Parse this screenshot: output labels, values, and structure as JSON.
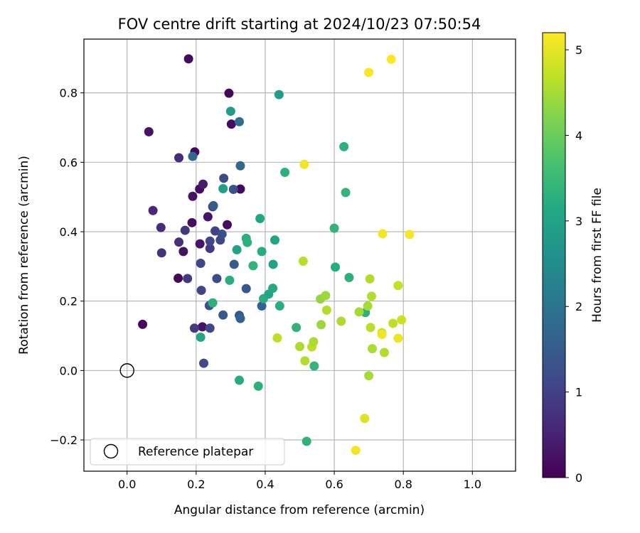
{
  "chart_data": {
    "type": "scatter",
    "title": "FOV centre drift starting at 2024/10/23 07:50:54",
    "xlabel": "Angular distance from reference (arcmin)",
    "ylabel": "Rotation from reference (arcmin)",
    "xlim": [
      -0.125,
      1.125
    ],
    "ylim": [
      -0.29,
      0.955
    ],
    "x_ticks": [
      0.0,
      0.2,
      0.4,
      0.6,
      0.8,
      1.0
    ],
    "x_tick_labels": [
      "0.0",
      "0.2",
      "0.4",
      "0.6",
      "0.8",
      "1.0"
    ],
    "y_ticks": [
      -0.2,
      0.0,
      0.2,
      0.4,
      0.6,
      0.8
    ],
    "y_tick_labels": [
      "−0.2",
      "0.0",
      "0.2",
      "0.4",
      "0.6",
      "0.8"
    ],
    "grid": true,
    "colormap": "viridis",
    "colorbar": {
      "label": "Hours from first FF file",
      "range": [
        0,
        5.2
      ],
      "ticks": [
        0,
        1,
        2,
        3,
        4,
        5
      ],
      "tick_labels": [
        "0",
        "1",
        "2",
        "3",
        "4",
        "5"
      ]
    },
    "reference_point": {
      "x": 0.0,
      "y": 0.0,
      "marker": "hollow-circle"
    },
    "legend": {
      "placement": "lower-left",
      "entries": [
        "Reference platepar"
      ]
    },
    "points": [
      {
        "x": 0.045,
        "y": 0.133,
        "c": 0.1
      },
      {
        "x": 0.063,
        "y": 0.688,
        "c": 0.25
      },
      {
        "x": 0.148,
        "y": 0.266,
        "c": 0.1
      },
      {
        "x": 0.163,
        "y": 0.343,
        "c": 0.25
      },
      {
        "x": 0.178,
        "y": 0.898,
        "c": 0.15
      },
      {
        "x": 0.188,
        "y": 0.426,
        "c": 0.2
      },
      {
        "x": 0.19,
        "y": 0.502,
        "c": 0.25
      },
      {
        "x": 0.196,
        "y": 0.63,
        "c": 0.1
      },
      {
        "x": 0.21,
        "y": 0.523,
        "c": 0.15
      },
      {
        "x": 0.211,
        "y": 0.365,
        "c": 0.3
      },
      {
        "x": 0.22,
        "y": 0.537,
        "c": 0.4
      },
      {
        "x": 0.218,
        "y": 0.126,
        "c": 0.25
      },
      {
        "x": 0.234,
        "y": 0.443,
        "c": 0.3
      },
      {
        "x": 0.29,
        "y": 0.42,
        "c": 0.2
      },
      {
        "x": 0.295,
        "y": 0.799,
        "c": 0.1
      },
      {
        "x": 0.302,
        "y": 0.71,
        "c": 0.15
      },
      {
        "x": 0.328,
        "y": 0.523,
        "c": 0.1
      },
      {
        "x": 0.075,
        "y": 0.461,
        "c": 0.6
      },
      {
        "x": 0.098,
        "y": 0.412,
        "c": 0.65
      },
      {
        "x": 0.15,
        "y": 0.613,
        "c": 0.65
      },
      {
        "x": 0.15,
        "y": 0.37,
        "c": 0.7
      },
      {
        "x": 0.1,
        "y": 0.339,
        "c": 0.75
      },
      {
        "x": 0.175,
        "y": 0.265,
        "c": 0.85
      },
      {
        "x": 0.168,
        "y": 0.404,
        "c": 0.8
      },
      {
        "x": 0.195,
        "y": 0.122,
        "c": 0.9
      },
      {
        "x": 0.213,
        "y": 0.309,
        "c": 1.1
      },
      {
        "x": 0.215,
        "y": 0.231,
        "c": 1.05
      },
      {
        "x": 0.222,
        "y": 0.021,
        "c": 1.2
      },
      {
        "x": 0.24,
        "y": 0.122,
        "c": 1.1
      },
      {
        "x": 0.24,
        "y": 0.352,
        "c": 0.85
      },
      {
        "x": 0.24,
        "y": 0.373,
        "c": 1.1
      },
      {
        "x": 0.238,
        "y": 0.187,
        "c": 1.3
      },
      {
        "x": 0.248,
        "y": 0.472,
        "c": 0.9
      },
      {
        "x": 0.255,
        "y": 0.402,
        "c": 1.0
      },
      {
        "x": 0.26,
        "y": 0.265,
        "c": 1.2
      },
      {
        "x": 0.27,
        "y": 0.376,
        "c": 1.1
      },
      {
        "x": 0.275,
        "y": 0.393,
        "c": 1.25
      },
      {
        "x": 0.278,
        "y": 0.16,
        "c": 1.4
      },
      {
        "x": 0.28,
        "y": 0.554,
        "c": 1.2
      },
      {
        "x": 0.308,
        "y": 0.522,
        "c": 1.3
      },
      {
        "x": 0.31,
        "y": 0.306,
        "c": 1.5
      },
      {
        "x": 0.325,
        "y": 0.159,
        "c": 1.4
      },
      {
        "x": 0.328,
        "y": 0.15,
        "c": 1.6
      },
      {
        "x": 0.328,
        "y": 0.59,
        "c": 1.75
      },
      {
        "x": 0.325,
        "y": 0.717,
        "c": 1.85
      },
      {
        "x": 0.345,
        "y": 0.236,
        "c": 1.4
      },
      {
        "x": 0.39,
        "y": 0.186,
        "c": 1.6
      },
      {
        "x": 0.19,
        "y": 0.617,
        "c": 1.75
      },
      {
        "x": 0.25,
        "y": 0.475,
        "c": 1.5
      },
      {
        "x": 0.213,
        "y": 0.096,
        "c": 3.05
      },
      {
        "x": 0.248,
        "y": 0.195,
        "c": 3.3
      },
      {
        "x": 0.278,
        "y": 0.524,
        "c": 2.95
      },
      {
        "x": 0.297,
        "y": 0.26,
        "c": 3.25
      },
      {
        "x": 0.3,
        "y": 0.747,
        "c": 2.85
      },
      {
        "x": 0.318,
        "y": 0.348,
        "c": 3.0
      },
      {
        "x": 0.325,
        "y": -0.028,
        "c": 3.2
      },
      {
        "x": 0.345,
        "y": 0.381,
        "c": 3.25
      },
      {
        "x": 0.348,
        "y": 0.369,
        "c": 3.3
      },
      {
        "x": 0.365,
        "y": 0.302,
        "c": 3.35
      },
      {
        "x": 0.38,
        "y": -0.045,
        "c": 3.3
      },
      {
        "x": 0.385,
        "y": 0.438,
        "c": 3.1
      },
      {
        "x": 0.39,
        "y": 0.343,
        "c": 3.2
      },
      {
        "x": 0.395,
        "y": 0.207,
        "c": 3.25
      },
      {
        "x": 0.41,
        "y": 0.22,
        "c": 3.1
      },
      {
        "x": 0.422,
        "y": 0.237,
        "c": 3.15
      },
      {
        "x": 0.423,
        "y": 0.306,
        "c": 3.0
      },
      {
        "x": 0.428,
        "y": 0.376,
        "c": 3.05
      },
      {
        "x": 0.44,
        "y": 0.795,
        "c": 2.9
      },
      {
        "x": 0.442,
        "y": 0.186,
        "c": 3.25
      },
      {
        "x": 0.457,
        "y": 0.571,
        "c": 3.3
      },
      {
        "x": 0.49,
        "y": 0.124,
        "c": 3.35
      },
      {
        "x": 0.52,
        "y": -0.204,
        "c": 3.35
      },
      {
        "x": 0.542,
        "y": 0.013,
        "c": 3.4
      },
      {
        "x": 0.6,
        "y": 0.41,
        "c": 3.4
      },
      {
        "x": 0.603,
        "y": 0.298,
        "c": 3.2
      },
      {
        "x": 0.628,
        "y": 0.645,
        "c": 3.3
      },
      {
        "x": 0.633,
        "y": 0.513,
        "c": 3.4
      },
      {
        "x": 0.643,
        "y": 0.268,
        "c": 3.3
      },
      {
        "x": 0.69,
        "y": 0.167,
        "c": 3.3
      },
      {
        "x": 0.435,
        "y": 0.094,
        "c": 4.7
      },
      {
        "x": 0.5,
        "y": 0.069,
        "c": 4.55
      },
      {
        "x": 0.51,
        "y": 0.315,
        "c": 4.65
      },
      {
        "x": 0.515,
        "y": 0.028,
        "c": 4.6
      },
      {
        "x": 0.535,
        "y": 0.068,
        "c": 4.7
      },
      {
        "x": 0.54,
        "y": 0.083,
        "c": 4.55
      },
      {
        "x": 0.56,
        "y": 0.206,
        "c": 4.35
      },
      {
        "x": 0.562,
        "y": 0.132,
        "c": 4.4
      },
      {
        "x": 0.575,
        "y": 0.216,
        "c": 4.45
      },
      {
        "x": 0.578,
        "y": 0.174,
        "c": 4.6
      },
      {
        "x": 0.62,
        "y": 0.142,
        "c": 4.55
      },
      {
        "x": 0.672,
        "y": 0.169,
        "c": 4.5
      },
      {
        "x": 0.697,
        "y": 0.186,
        "c": 4.5
      },
      {
        "x": 0.7,
        "y": -0.015,
        "c": 4.5
      },
      {
        "x": 0.703,
        "y": 0.264,
        "c": 4.6
      },
      {
        "x": 0.705,
        "y": 0.124,
        "c": 4.65
      },
      {
        "x": 0.708,
        "y": 0.214,
        "c": 4.6
      },
      {
        "x": 0.71,
        "y": 0.063,
        "c": 4.55
      },
      {
        "x": 0.738,
        "y": 0.109,
        "c": 4.8
      },
      {
        "x": 0.745,
        "y": 0.052,
        "c": 4.6
      },
      {
        "x": 0.77,
        "y": 0.136,
        "c": 4.7
      },
      {
        "x": 0.785,
        "y": 0.245,
        "c": 4.75
      },
      {
        "x": 0.795,
        "y": 0.146,
        "c": 4.8
      },
      {
        "x": 0.688,
        "y": -0.138,
        "c": 4.95
      },
      {
        "x": 0.662,
        "y": -0.23,
        "c": 5.1
      },
      {
        "x": 0.513,
        "y": 0.594,
        "c": 5.1
      },
      {
        "x": 0.7,
        "y": 0.859,
        "c": 5.15
      },
      {
        "x": 0.765,
        "y": 0.897,
        "c": 5.2
      },
      {
        "x": 0.74,
        "y": 0.394,
        "c": 5.1
      },
      {
        "x": 0.818,
        "y": 0.392,
        "c": 5.15
      },
      {
        "x": 0.738,
        "y": 0.104,
        "c": 5.1
      },
      {
        "x": 0.785,
        "y": 0.093,
        "c": 5.05
      }
    ]
  }
}
